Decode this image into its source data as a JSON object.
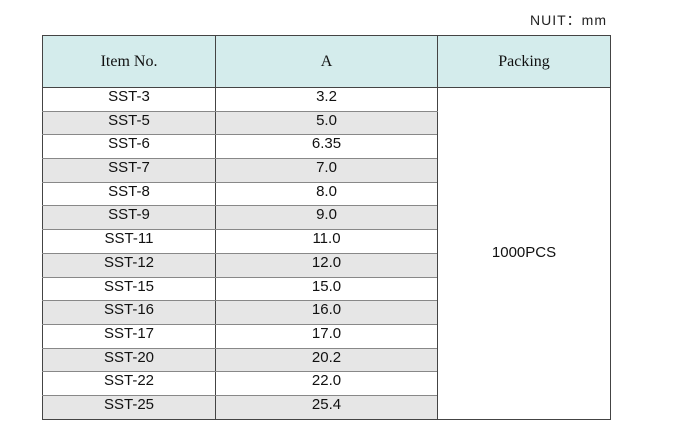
{
  "unit": "NUIT：mm",
  "table": {
    "header": [
      "Item No.",
      "A",
      "Packing"
    ],
    "rows": [
      [
        "SST-3",
        "3.2"
      ],
      [
        "SST-5",
        "5.0"
      ],
      [
        "SST-6",
        "6.35"
      ],
      [
        "SST-7",
        "7.0"
      ],
      [
        "SST-8",
        "8.0"
      ],
      [
        "SST-9",
        "9.0"
      ],
      [
        "SST-11",
        "11.0"
      ],
      [
        "SST-12",
        "12.0"
      ],
      [
        "SST-15",
        "15.0"
      ],
      [
        "SST-16",
        "16.0"
      ],
      [
        "SST-17",
        "17.0"
      ],
      [
        "SST-20",
        "20.2"
      ],
      [
        "SST-22",
        "22.0"
      ],
      [
        "SST-25",
        "25.4"
      ]
    ],
    "packing": "1000PCS"
  }
}
